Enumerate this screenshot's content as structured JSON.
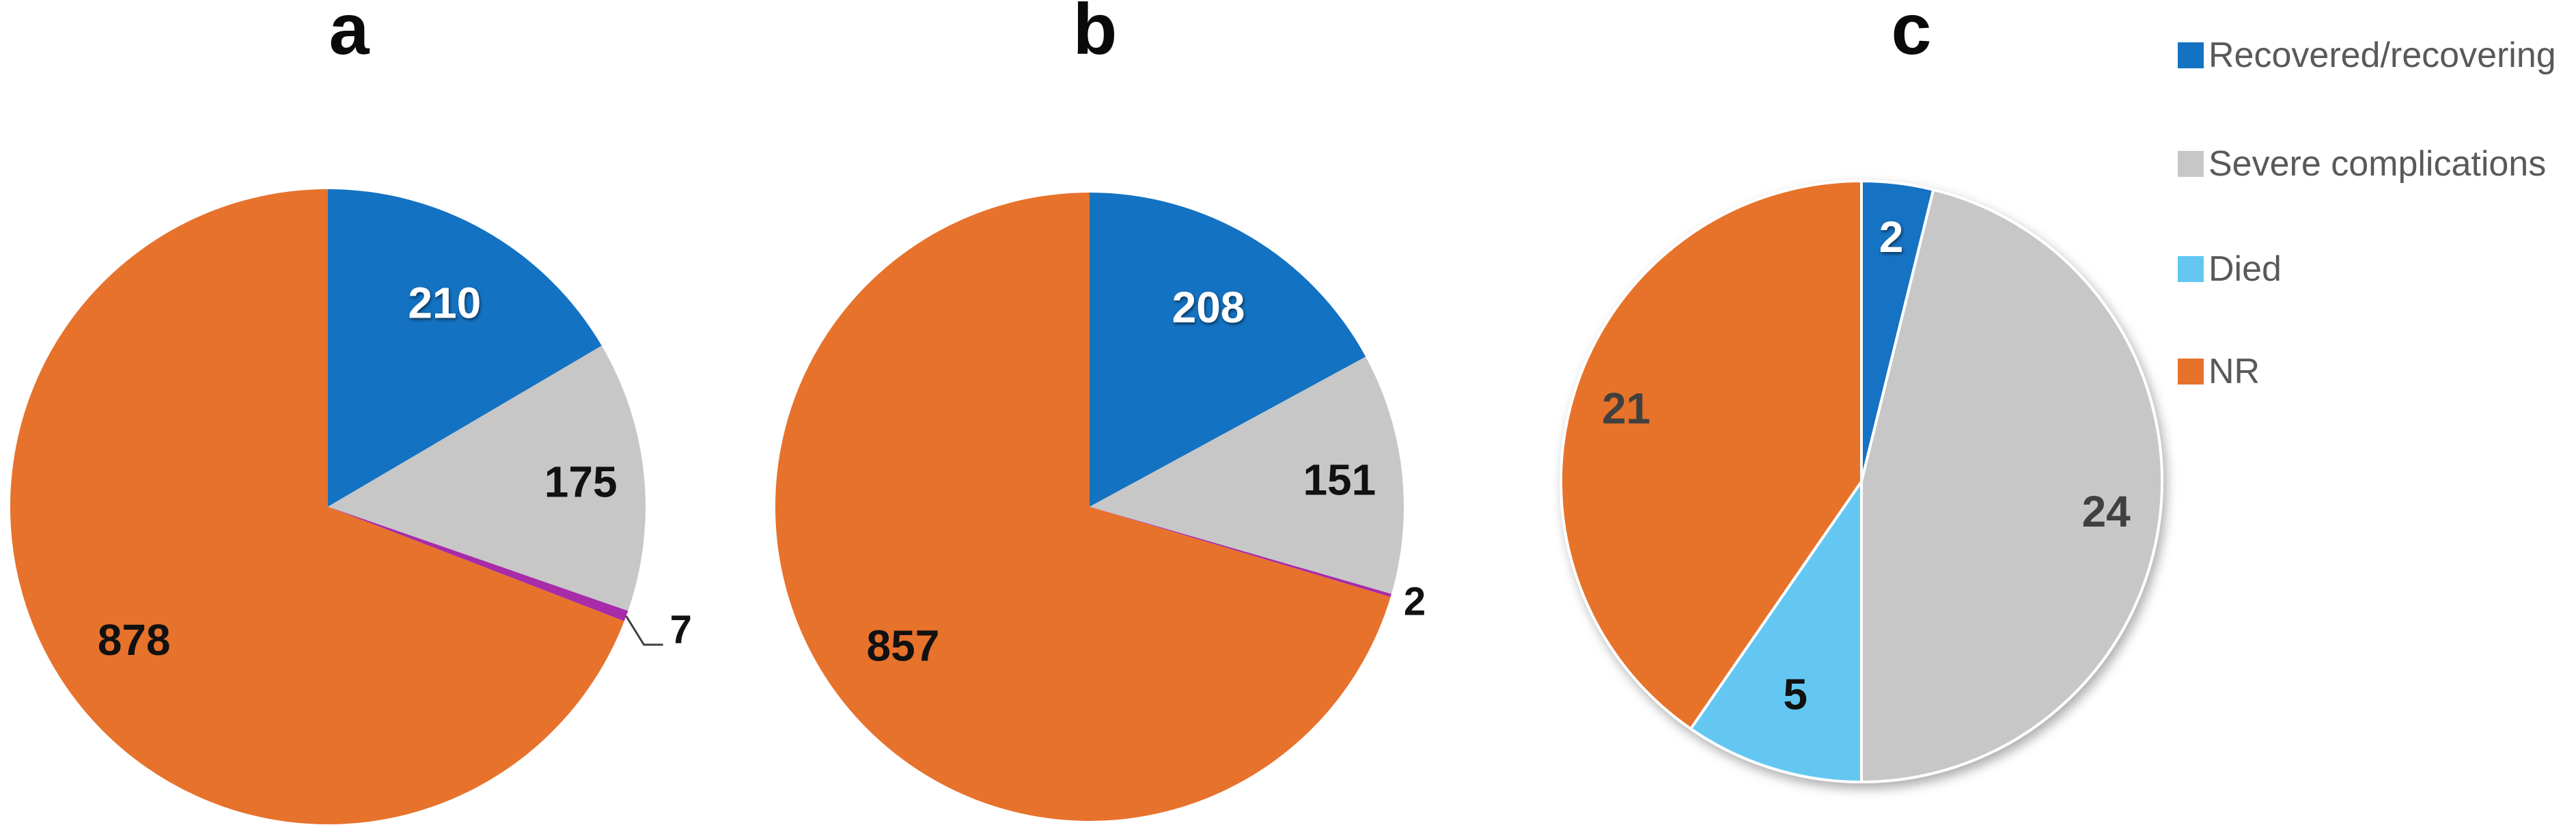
{
  "figure_background": "#ffffff",
  "legend": {
    "position": "right",
    "text_color": "#595959",
    "items": [
      {
        "label": "Recovered/recovering",
        "color": "#1472C2"
      },
      {
        "label": "Severe complications",
        "color": "#C7C7C7"
      },
      {
        "label": "Died",
        "color": "#63C7F2"
      },
      {
        "label": "NR",
        "color": "#E7722C"
      }
    ]
  },
  "chart_data": [
    {
      "type": "pie",
      "title": "a",
      "start_angle_deg": 0,
      "direction": "clockwise",
      "total": 1270,
      "categories": [
        "Recovered/recovering",
        "Severe complications",
        "Died",
        "NR"
      ],
      "values": [
        210,
        175,
        7,
        878
      ],
      "slices": [
        {
          "category": "Recovered/recovering",
          "value": 210,
          "color": "#1472C2",
          "label": "210",
          "label_color": "#FFFFFF",
          "placement": "inside"
        },
        {
          "category": "Severe complications",
          "value": 175,
          "color": "#C7C7C7",
          "label": "175",
          "label_color": "#111111",
          "placement": "inside"
        },
        {
          "category": "Died",
          "value": 7,
          "color": "#A82BA8",
          "label": "7",
          "label_color": "#111111",
          "placement": "outside-leader"
        },
        {
          "category": "NR",
          "value": 878,
          "color": "#E7722C",
          "label": "878",
          "label_color": "#111111",
          "placement": "inside"
        }
      ]
    },
    {
      "type": "pie",
      "title": "b",
      "start_angle_deg": 0,
      "direction": "clockwise",
      "total": 1218,
      "categories": [
        "Recovered/recovering",
        "Severe complications",
        "Died",
        "NR"
      ],
      "values": [
        208,
        151,
        2,
        857
      ],
      "slices": [
        {
          "category": "Recovered/recovering",
          "value": 208,
          "color": "#1472C2",
          "label": "208",
          "label_color": "#FFFFFF",
          "placement": "inside"
        },
        {
          "category": "Severe complications",
          "value": 151,
          "color": "#C7C7C7",
          "label": "151",
          "label_color": "#111111",
          "placement": "inside"
        },
        {
          "category": "Died",
          "value": 2,
          "color": "#A82BA8",
          "label": "2",
          "label_color": "#111111",
          "placement": "outside"
        },
        {
          "category": "NR",
          "value": 857,
          "color": "#E7722C",
          "label": "857",
          "label_color": "#111111",
          "placement": "inside"
        }
      ]
    },
    {
      "type": "pie",
      "title": "c",
      "start_angle_deg": 0,
      "direction": "clockwise",
      "total": 52,
      "categories": [
        "Recovered/recovering",
        "Severe complications",
        "Died",
        "NR"
      ],
      "values": [
        2,
        24,
        5,
        21
      ],
      "slices": [
        {
          "category": "Recovered/recovering",
          "value": 2,
          "color": "#1472C2",
          "label": "2",
          "label_color": "#FFFFFF",
          "placement": "inside"
        },
        {
          "category": "Severe complications",
          "value": 24,
          "color": "#C7C7C7",
          "label": "24",
          "label_color": "#404040",
          "placement": "inside"
        },
        {
          "category": "Died",
          "value": 5,
          "color": "#63C7F2",
          "label": "5",
          "label_color": "#111111",
          "placement": "inside"
        },
        {
          "category": "NR",
          "value": 21,
          "color": "#E7722C",
          "label": "21",
          "label_color": "#404040",
          "placement": "inside"
        }
      ]
    }
  ]
}
